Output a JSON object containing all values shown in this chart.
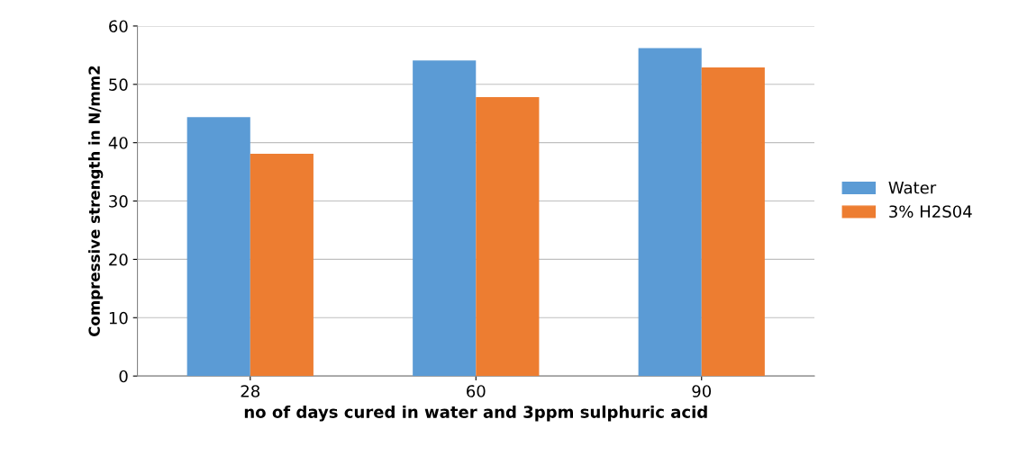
{
  "chart_data": {
    "type": "bar",
    "categories": [
      "28",
      "60",
      "90"
    ],
    "series": [
      {
        "name": "Water",
        "color": "#5b9bd5",
        "values": [
          44.4,
          54.1,
          56.2
        ]
      },
      {
        "name": "3% H2S04",
        "color": "#ed7d31",
        "values": [
          38.1,
          47.8,
          52.9
        ]
      }
    ],
    "xlabel": "no of days cured in water and 3ppm sulphuric acid",
    "ylabel": "Compressive strength in N/mm2",
    "ylim": [
      0,
      60
    ],
    "yticks": [
      0,
      10,
      20,
      30,
      40,
      50,
      60
    ],
    "grid": "y",
    "legend": "right"
  }
}
